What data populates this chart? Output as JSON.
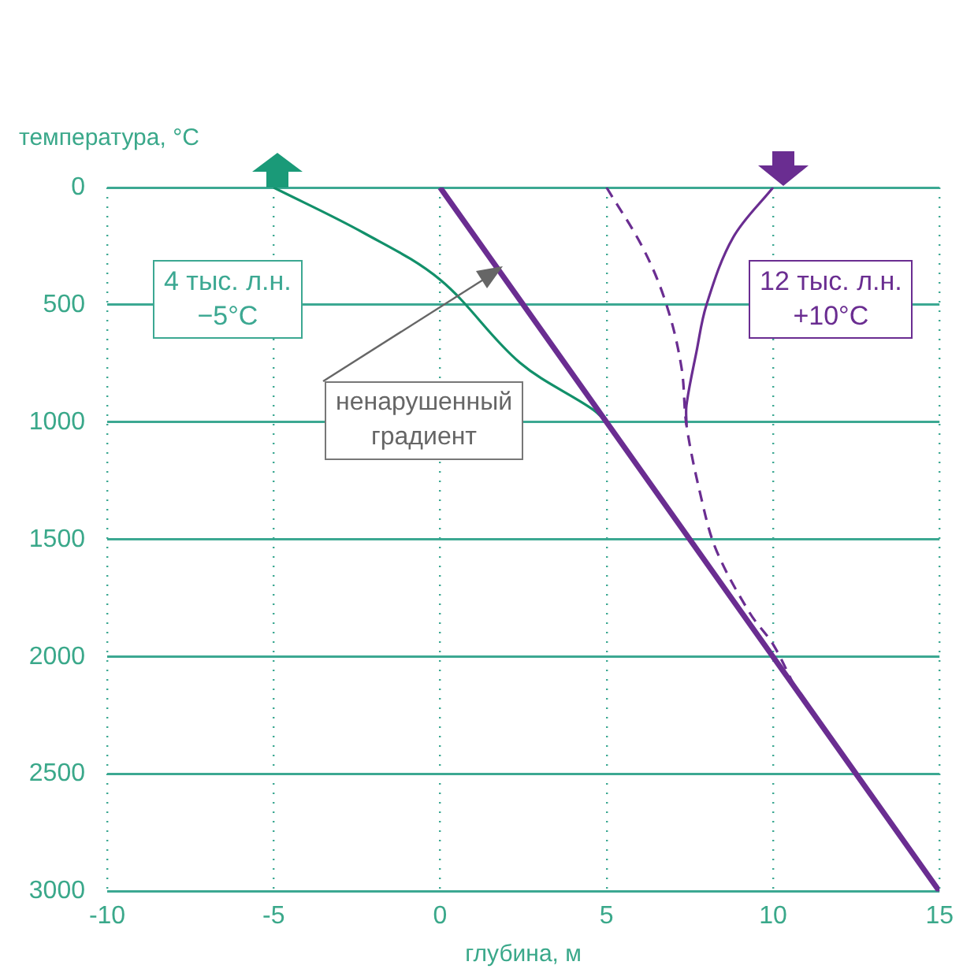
{
  "chart_data": {
    "type": "line",
    "ylabel": "температура, °C",
    "xlabel": "глубина, м",
    "xlim": [
      -10,
      15
    ],
    "xticks": [
      -10,
      -5,
      0,
      5,
      10,
      15
    ],
    "ylim": [
      3000,
      0
    ],
    "yticks": [
      0,
      500,
      1000,
      1500,
      2000,
      2500,
      3000
    ],
    "grid": true,
    "legend": false,
    "marker": "none",
    "series": [
      {
        "color": "#6a2d91",
        "x": [
          0,
          15
        ],
        "values": [
          0,
          3000
        ]
      },
      {
        "color": "#12906a",
        "x": [
          -5,
          -2.3,
          0,
          2.4,
          4.6,
          5
        ],
        "values": [
          0,
          193,
          393,
          747,
          947,
          1000
        ]
      },
      {
        "color": "#6a2d91",
        "x": [
          10,
          8.8,
          8,
          7.7,
          7.4,
          7.4
        ],
        "values": [
          0,
          213,
          500,
          700,
          927,
          1013
        ]
      },
      {
        "color": "#6a2d91",
        "line_style": "dashed",
        "x": [
          5,
          6.1,
          6.8,
          7.25,
          7.4,
          7.85,
          8.3,
          9.3,
          10,
          10.65
        ],
        "values": [
          0,
          260,
          500,
          767,
          1013,
          1327,
          1547,
          1813,
          1947,
          2127
        ]
      }
    ],
    "annotations": [
      "4 тыс. л.н.\n−5°C",
      "12 тыс. л.н.\n+10°C",
      "ненарушенный\nградиент"
    ]
  }
}
